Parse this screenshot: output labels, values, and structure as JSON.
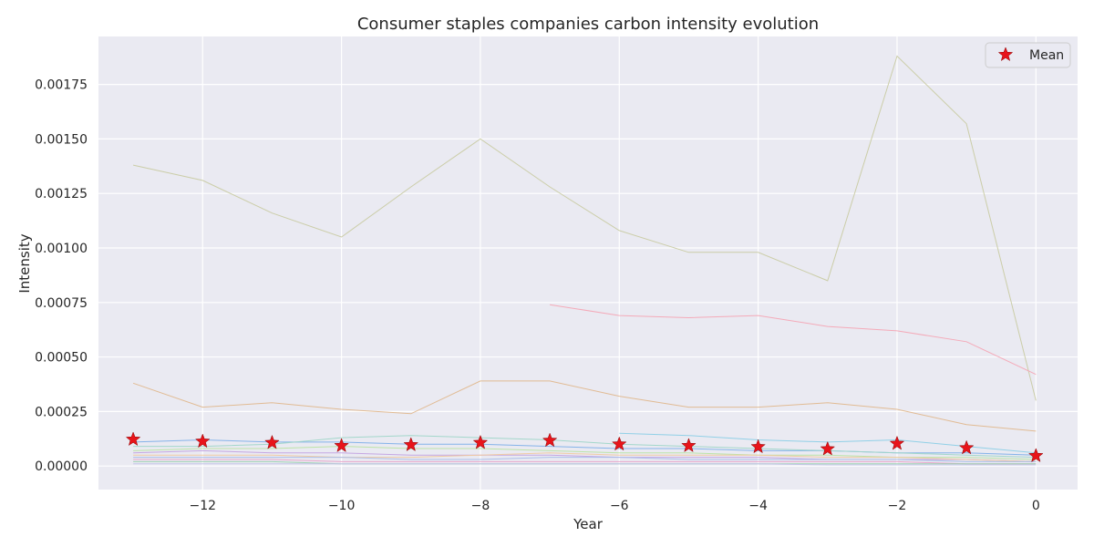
{
  "chart_data": {
    "type": "line",
    "title": "Consumer staples companies carbon intensity evolution",
    "xlabel": "Year",
    "ylabel": "Intensity",
    "xlim": [
      -13.5,
      0.6
    ],
    "ylim": [
      -0.000108,
      0.00197
    ],
    "x_ticks": [
      -12,
      -10,
      -8,
      -6,
      -4,
      -2,
      0
    ],
    "x_tick_labels": [
      "−12",
      "−10",
      "−8",
      "−6",
      "−4",
      "−2",
      "0"
    ],
    "y_ticks": [
      0,
      0.00025,
      0.0005,
      0.00075,
      0.001,
      0.00125,
      0.0015,
      0.00175
    ],
    "y_tick_labels": [
      "0.00000",
      "0.00025",
      "0.00050",
      "0.00075",
      "0.00100",
      "0.00125",
      "0.00150",
      "0.00175"
    ],
    "grid": true,
    "legend": {
      "position": "top-right",
      "entries": [
        "Mean"
      ]
    },
    "colors": {
      "background": "#eaeaf2",
      "grid": "#ffffff",
      "mean_marker": "#e8141a"
    },
    "series": [
      {
        "color": "#c9cba3",
        "x": [
          -13,
          -12,
          -11,
          -10,
          -9,
          -8,
          -7,
          -6,
          -5,
          -4,
          -3,
          -2,
          -1,
          0
        ],
        "values": [
          0.00138,
          0.00131,
          0.00116,
          0.00105,
          0.00128,
          0.0015,
          0.00128,
          0.00108,
          0.00098,
          0.00098,
          0.00085,
          0.00188,
          0.00157,
          0.0003
        ]
      },
      {
        "color": "#f4a6b5",
        "x": [
          -7,
          -6,
          -5,
          -4,
          -3,
          -2,
          -1,
          0
        ],
        "values": [
          0.00074,
          0.00069,
          0.00068,
          0.00069,
          0.00064,
          0.00062,
          0.00057,
          0.00042
        ]
      },
      {
        "color": "#e0b88e",
        "x": [
          -13,
          -12,
          -11,
          -10,
          -9,
          -8,
          -7,
          -6,
          -5,
          -4,
          -3,
          -2,
          -1,
          0
        ],
        "values": [
          0.00038,
          0.00027,
          0.00029,
          0.00026,
          0.00024,
          0.00039,
          0.00039,
          0.00032,
          0.00027,
          0.00027,
          0.00029,
          0.00026,
          0.00019,
          0.00016
        ]
      },
      {
        "color": "#8ccfe6",
        "x": [
          -6,
          -5,
          -4,
          -3,
          -2,
          -1,
          0
        ],
        "values": [
          0.00015,
          0.00014,
          0.00012,
          0.00011,
          0.00012,
          9e-05,
          6e-05
        ]
      },
      {
        "color": "#7fb0e8",
        "x": [
          -13,
          -12,
          -11,
          -10,
          -9,
          -8,
          -7,
          -6,
          -5,
          -4,
          -3,
          -2,
          -1,
          0
        ],
        "values": [
          0.00011,
          0.00012,
          0.00011,
          0.00011,
          0.0001,
          0.0001,
          9e-05,
          8e-05,
          8e-05,
          7e-05,
          7e-05,
          6e-05,
          6e-05,
          5e-05
        ]
      },
      {
        "color": "#9fd6c8",
        "x": [
          -13,
          -12,
          -11,
          -10,
          -9,
          -8,
          -7,
          -6,
          -5,
          -4,
          -3,
          -2,
          -1,
          0
        ],
        "values": [
          9e-05,
          9e-05,
          0.0001,
          0.00013,
          0.00014,
          0.00013,
          0.00012,
          0.0001,
          9e-05,
          8e-05,
          7e-05,
          6e-05,
          5e-05,
          4e-05
        ]
      },
      {
        "color": "#b9e3a3",
        "x": [
          -13,
          -12,
          -11,
          -10,
          -9,
          -8,
          -7,
          -6,
          -5,
          -4,
          -3,
          -2,
          -1,
          0
        ],
        "values": [
          7e-05,
          8e-05,
          8e-05,
          9e-05,
          8e-05,
          8e-05,
          7e-05,
          6e-05,
          6e-05,
          5e-05,
          5e-05,
          4e-05,
          4e-05,
          3e-05
        ]
      },
      {
        "color": "#c3a3e0",
        "x": [
          -13,
          -12,
          -11,
          -10,
          -9,
          -8,
          -7,
          -6,
          -5,
          -4,
          -3,
          -2,
          -1,
          0
        ],
        "values": [
          6e-05,
          7e-05,
          6e-05,
          6e-05,
          5e-05,
          5e-05,
          5e-05,
          4e-05,
          4e-05,
          4e-05,
          3e-05,
          3e-05,
          3e-05,
          2e-05
        ]
      },
      {
        "color": "#f0c9a0",
        "x": [
          -13,
          -12,
          -11,
          -10,
          -9,
          -8,
          -7,
          -6,
          -5,
          -4,
          -3,
          -2,
          -1,
          0
        ],
        "values": [
          5e-05,
          5e-05,
          5e-05,
          4e-05,
          4e-05,
          5e-05,
          6e-05,
          5e-05,
          5e-05,
          5e-05,
          4e-05,
          4e-05,
          3e-05,
          2e-05
        ]
      },
      {
        "color": "#a8bde8",
        "x": [
          -13,
          -12,
          -11,
          -10,
          -9,
          -8,
          -7,
          -6,
          -5,
          -4,
          -3,
          -2,
          -1,
          0
        ],
        "values": [
          4e-05,
          4e-05,
          4e-05,
          4e-05,
          3e-05,
          3e-05,
          4e-05,
          4e-05,
          3e-05,
          3e-05,
          3e-05,
          3e-05,
          2e-05,
          2e-05
        ]
      },
      {
        "color": "#e8a3c8",
        "x": [
          -13,
          -12,
          -11,
          -10,
          -9,
          -8,
          -7,
          -6,
          -5,
          -4,
          -3,
          -2,
          -1,
          0
        ],
        "values": [
          3e-05,
          3e-05,
          3e-05,
          2e-05,
          2e-05,
          2e-05,
          2e-05,
          2e-05,
          2e-05,
          2e-05,
          2e-05,
          2e-05,
          1e-05,
          1e-05
        ]
      },
      {
        "color": "#9ad0b0",
        "x": [
          -13,
          -12,
          -11,
          -10,
          -9,
          -8,
          -7,
          -6,
          -5,
          -4,
          -3,
          -2,
          -1,
          0
        ],
        "values": [
          2e-05,
          2e-05,
          2e-05,
          1e-05,
          1e-05,
          1e-05,
          1e-05,
          1e-05,
          1e-05,
          1e-05,
          1e-05,
          1e-05,
          1e-05,
          1e-05
        ]
      },
      {
        "color": "#c4c4e8",
        "x": [
          -13,
          -12,
          -11,
          -10,
          -9,
          -8,
          -7,
          -6,
          -5,
          -4,
          -3,
          -2,
          -1,
          0
        ],
        "values": [
          1e-05,
          1e-05,
          1e-05,
          1e-05,
          1e-05,
          1e-05,
          1e-05,
          1e-05,
          1e-05,
          1e-05,
          5e-06,
          5e-06,
          5e-06,
          5e-06
        ]
      }
    ],
    "mean": {
      "name": "Mean",
      "x": [
        -13,
        -12,
        -11,
        -10,
        -9,
        -8,
        -7,
        -6,
        -5,
        -4,
        -3,
        -2,
        -1,
        0
      ],
      "values": [
        0.000122,
        0.000113,
        0.000107,
        9.3e-05,
        9.7e-05,
        0.000107,
        0.000117,
        0.0001,
        9.3e-05,
        8.8e-05,
        7.8e-05,
        0.000103,
        8.3e-05,
        4.7e-05
      ]
    }
  }
}
